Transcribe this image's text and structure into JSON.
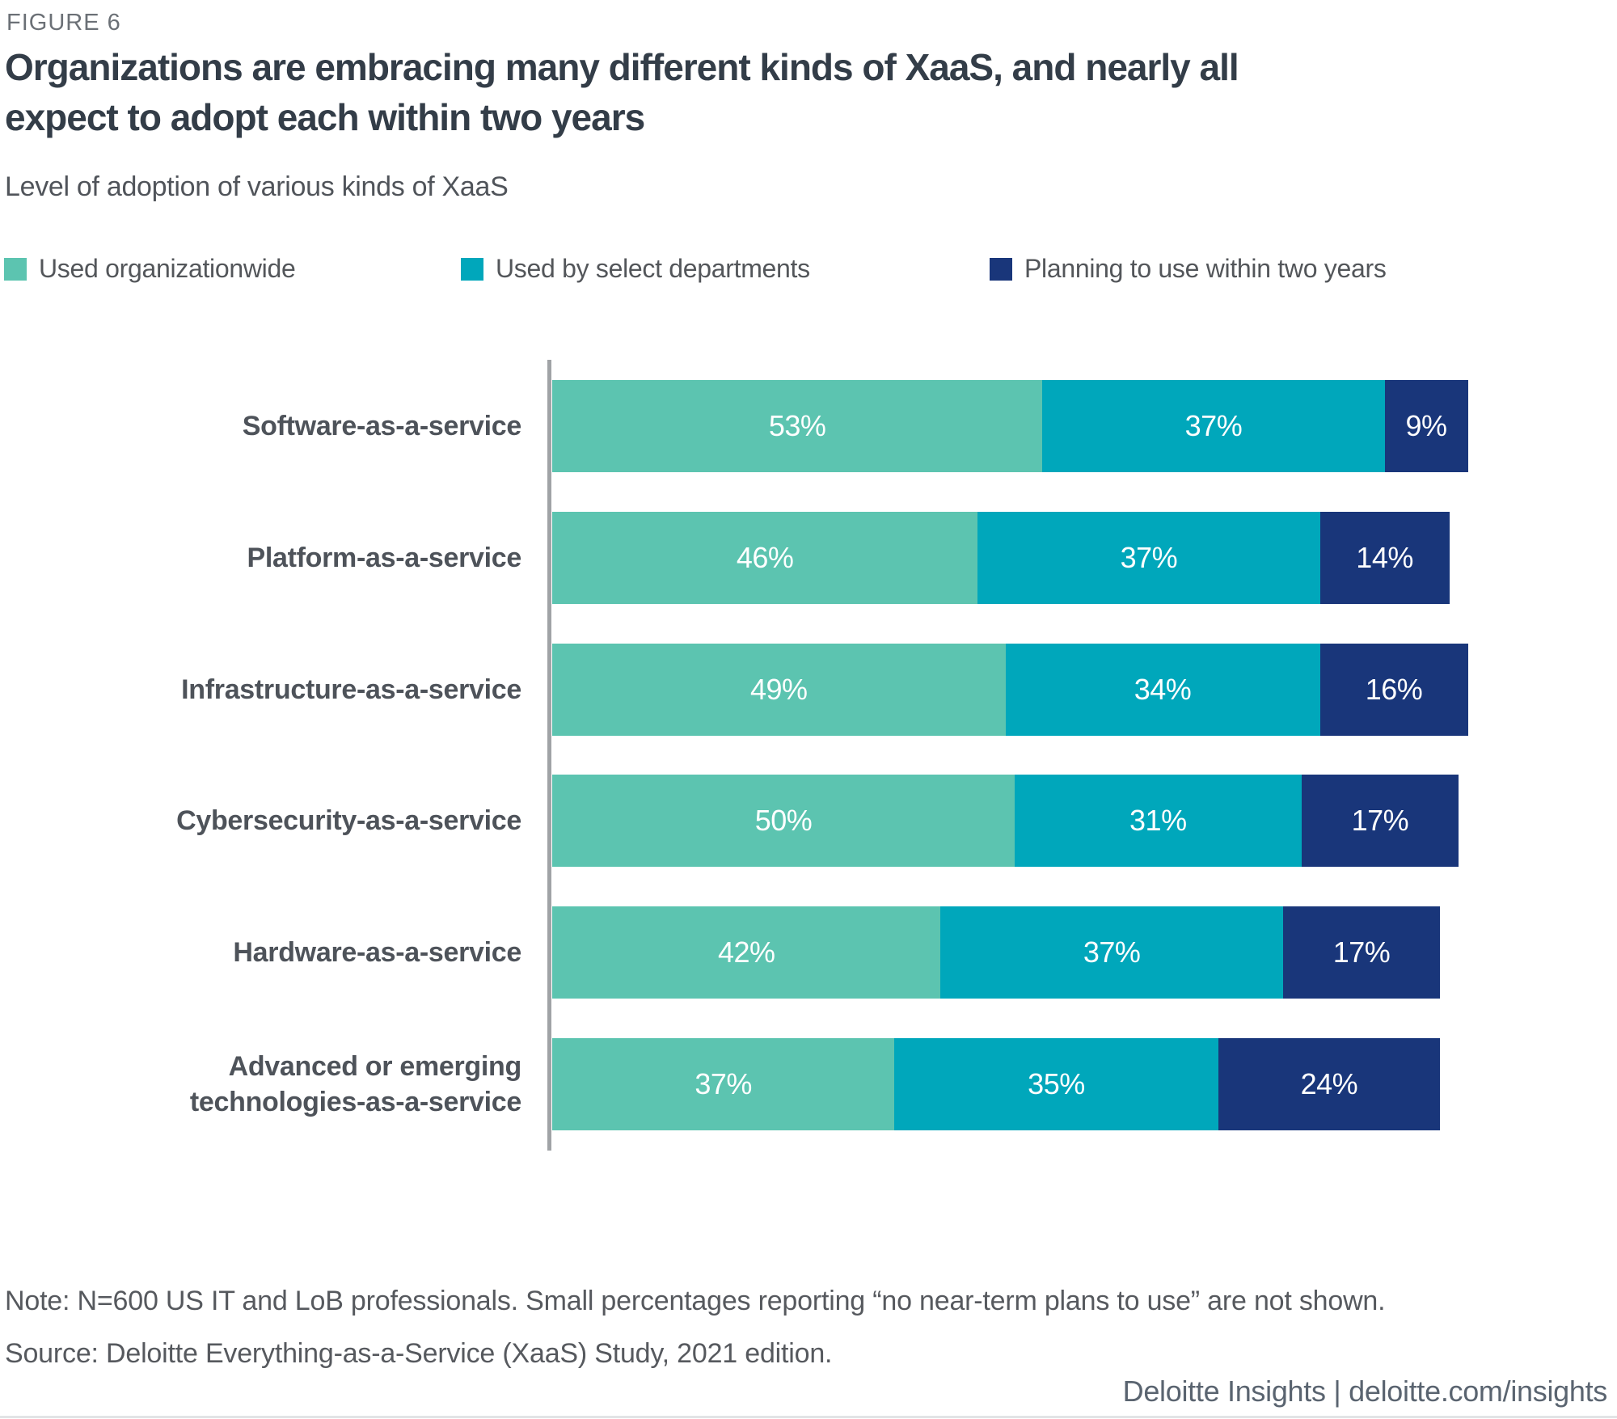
{
  "figure_label": "FIGURE 6",
  "title": "Organizations are embracing many different kinds of XaaS, and nearly all\nexpect to adopt each within two years",
  "subtitle": "Level of adoption of various kinds of XaaS",
  "colors": {
    "used_organizationwide": "#5CC4B0",
    "used_by_select_departments": "#00A7BB",
    "planning_to_use": "#19367A",
    "axis_line": "#A0A3A6",
    "title_text": "#333D48",
    "body_text": "#53565A"
  },
  "legend": {
    "items": [
      {
        "label": "Used organizationwide"
      },
      {
        "label": "Used by select departments"
      },
      {
        "label": "Planning to use within two years"
      }
    ]
  },
  "chart_data": {
    "type": "bar",
    "orientation": "horizontal",
    "stacked": true,
    "title": "Level of adoption of various kinds of XaaS",
    "categories": [
      "Software-as-a-service",
      "Platform-as-a-service",
      "Infrastructure-as-a-service",
      "Cybersecurity-as-a-service",
      "Hardware-as-a-service",
      "Advanced or emerging\ntechnologies-as-a-service"
    ],
    "series": [
      {
        "name": "Used organizationwide",
        "color": "#5CC4B0",
        "values": [
          53,
          46,
          49,
          50,
          42,
          37
        ]
      },
      {
        "name": "Used by select departments",
        "color": "#00A7BB",
        "values": [
          37,
          37,
          34,
          31,
          37,
          35
        ]
      },
      {
        "name": "Planning to use within two years",
        "color": "#19367A",
        "values": [
          9,
          14,
          16,
          17,
          17,
          24
        ]
      }
    ],
    "value_suffix": "%",
    "xlim": [
      0,
      100
    ],
    "grid": false,
    "legend_position": "top",
    "data_labels": true
  },
  "note": "Note: N=600 US IT and LoB professionals. Small percentages reporting “no near-term plans to use” are not shown.",
  "source": "Source: Deloitte Everything-as-a-Service (XaaS) Study, 2021 edition.",
  "footer": "Deloitte Insights | deloitte.com/insights"
}
